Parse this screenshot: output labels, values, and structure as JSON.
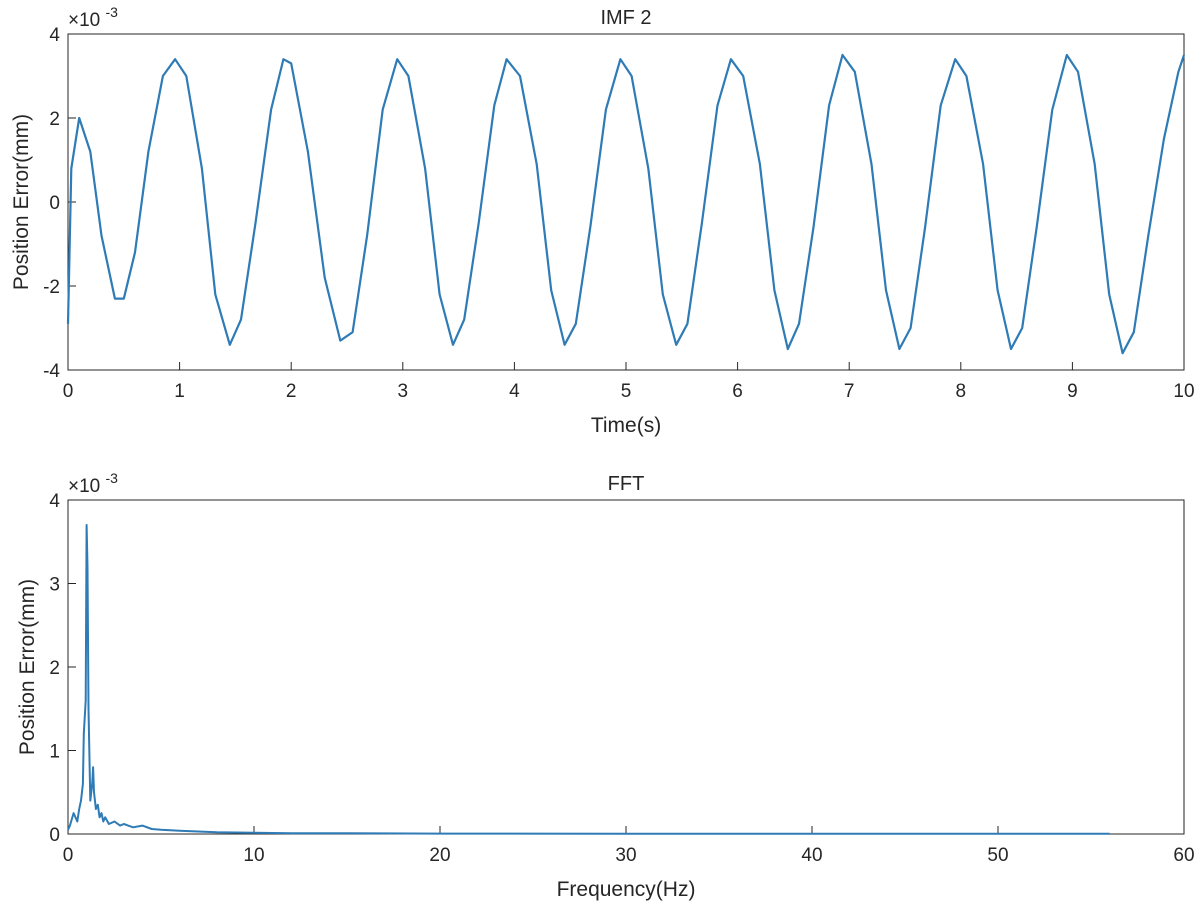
{
  "chart_data": [
    {
      "type": "line",
      "title": "IMF 2",
      "xlabel": "Time(s)",
      "ylabel": "Position Error(mm)",
      "xlim": [
        0,
        10
      ],
      "ylim": [
        -4,
        4
      ],
      "y_multiplier_label": "×10",
      "y_multiplier_exponent": "-3",
      "xticks": [
        "0",
        "1",
        "2",
        "3",
        "4",
        "5",
        "6",
        "7",
        "8",
        "9",
        "10"
      ],
      "yticks": [
        "-4",
        "-2",
        "0",
        "2",
        "4"
      ],
      "grid": false,
      "line_color": "#2e7bb6",
      "series": [
        {
          "x": [
            0,
            0.03,
            0.1,
            0.2,
            0.3,
            0.42,
            0.5,
            0.6,
            0.72,
            0.85,
            0.96,
            1.06,
            1.2,
            1.32,
            1.45,
            1.55,
            1.68,
            1.82,
            1.93,
            2.0,
            2.15,
            2.3,
            2.44,
            2.55,
            2.68,
            2.82,
            2.95,
            3.05,
            3.2,
            3.33,
            3.45,
            3.55,
            3.68,
            3.82,
            3.93,
            4.05,
            4.2,
            4.33,
            4.45,
            4.55,
            4.68,
            4.82,
            4.95,
            5.05,
            5.2,
            5.33,
            5.45,
            5.55,
            5.68,
            5.82,
            5.94,
            6.05,
            6.2,
            6.33,
            6.45,
            6.55,
            6.68,
            6.82,
            6.94,
            7.05,
            7.2,
            7.33,
            7.45,
            7.55,
            7.68,
            7.82,
            7.95,
            8.05,
            8.2,
            8.33,
            8.45,
            8.55,
            8.68,
            8.82,
            8.95,
            9.05,
            9.2,
            9.33,
            9.45,
            9.55,
            9.68,
            9.82,
            9.95,
            10
          ],
          "y": [
            -0.0029,
            0.0008,
            0.002,
            0.0012,
            -0.0008,
            -0.0023,
            -0.0023,
            -0.0012,
            0.0012,
            0.003,
            0.0034,
            0.003,
            0.0008,
            -0.0022,
            -0.0034,
            -0.0028,
            -0.0005,
            0.0022,
            0.0034,
            0.0033,
            0.0012,
            -0.0018,
            -0.0033,
            -0.0031,
            -0.0008,
            0.0022,
            0.0034,
            0.003,
            0.0008,
            -0.0022,
            -0.0034,
            -0.0028,
            -0.0005,
            0.0023,
            0.0034,
            0.003,
            0.0009,
            -0.0021,
            -0.0034,
            -0.0029,
            -0.0006,
            0.0022,
            0.0034,
            0.003,
            0.0008,
            -0.0022,
            -0.0034,
            -0.0029,
            -0.0005,
            0.0023,
            0.0034,
            0.003,
            0.0009,
            -0.0021,
            -0.0035,
            -0.0029,
            -0.0006,
            0.0023,
            0.0035,
            0.0031,
            0.0009,
            -0.0021,
            -0.0035,
            -0.003,
            -0.0006,
            0.0023,
            0.0034,
            0.003,
            0.0009,
            -0.0021,
            -0.0035,
            -0.003,
            -0.0006,
            0.0022,
            0.0035,
            0.0031,
            0.0009,
            -0.0022,
            -0.0036,
            -0.0031,
            -0.0008,
            0.0015,
            0.0031,
            0.0035
          ]
        }
      ]
    },
    {
      "type": "line",
      "title": "FFT",
      "xlabel": "Frequency(Hz)",
      "ylabel": "Position Error(mm)",
      "xlim": [
        0,
        60
      ],
      "ylim": [
        0,
        4
      ],
      "y_multiplier_label": "×10",
      "y_multiplier_exponent": "-3",
      "xticks": [
        "0",
        "10",
        "20",
        "30",
        "40",
        "50",
        "60"
      ],
      "yticks": [
        "0",
        "1",
        "2",
        "3",
        "4"
      ],
      "grid": false,
      "line_color": "#2e7bb6",
      "series": [
        {
          "x": [
            0,
            0.1,
            0.3,
            0.5,
            0.6,
            0.7,
            0.8,
            0.85,
            0.95,
            1.0,
            1.05,
            1.1,
            1.2,
            1.3,
            1.35,
            1.4,
            1.5,
            1.6,
            1.7,
            1.8,
            1.9,
            2.0,
            2.2,
            2.5,
            2.8,
            3.0,
            3.5,
            4.0,
            4.5,
            5.0,
            6.0,
            7.0,
            8.0,
            10.0,
            12.0,
            15.0,
            20.0,
            30.0,
            40.0,
            50.0,
            56.0
          ],
          "y": [
            5e-05,
            0.0001,
            0.00025,
            0.00015,
            0.0003,
            0.0004,
            0.0006,
            0.0012,
            0.0016,
            0.0037,
            0.0032,
            0.0015,
            0.0004,
            0.0006,
            0.0008,
            0.0005,
            0.0003,
            0.00035,
            0.0002,
            0.00025,
            0.00015,
            0.0002,
            0.00012,
            0.00015,
            0.0001,
            0.00012,
            8e-05,
            0.0001,
            6e-05,
            5e-05,
            4e-05,
            3e-05,
            2e-05,
            1.5e-05,
            1e-05,
            8e-06,
            5e-06,
            4e-06,
            3e-06,
            2e-06,
            2e-06
          ]
        }
      ]
    }
  ]
}
